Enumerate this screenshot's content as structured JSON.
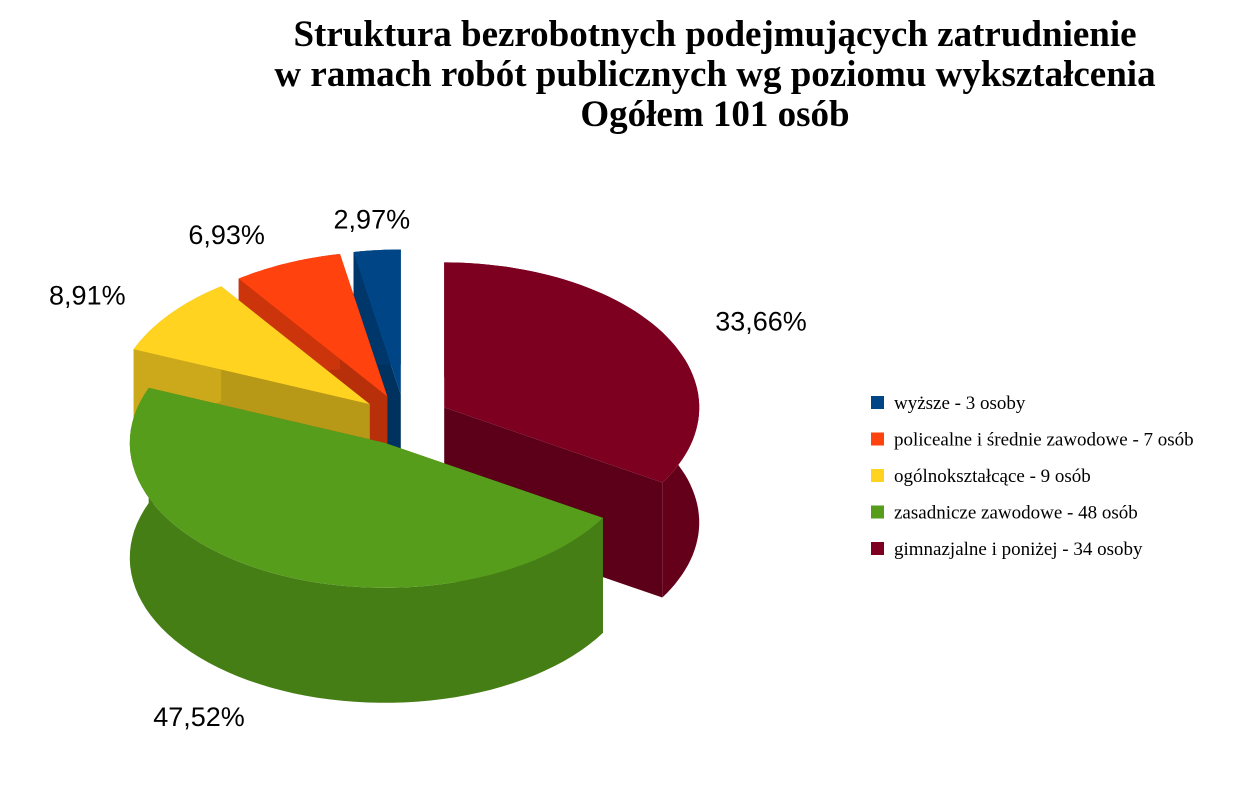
{
  "chart_data": {
    "type": "pie3d",
    "title": [
      "Struktura bezrobotnych podejmujących zatrudnienie",
      "w ramach robót publicznych wg poziomu wykształcenia",
      "Ogółem 101 osób"
    ],
    "categories": [
      "wyższe - 3 osoby",
      "policealne i średnie zawodowe - 7 osób",
      "ogólnokształcące - 9 osób",
      "zasadnicze zawodowe - 48 osób",
      "gimnazjalne i poniżej - 34 osoby"
    ],
    "values": [
      2.97,
      6.93,
      8.91,
      47.52,
      33.66
    ],
    "value_labels": [
      "2,97%",
      "6,93%",
      "8,91%",
      "47,52%",
      "33,66%"
    ],
    "colors": [
      "#004586",
      "#ff420e",
      "#ffd320",
      "#579d1c",
      "#7e0021"
    ],
    "legend": "right"
  }
}
